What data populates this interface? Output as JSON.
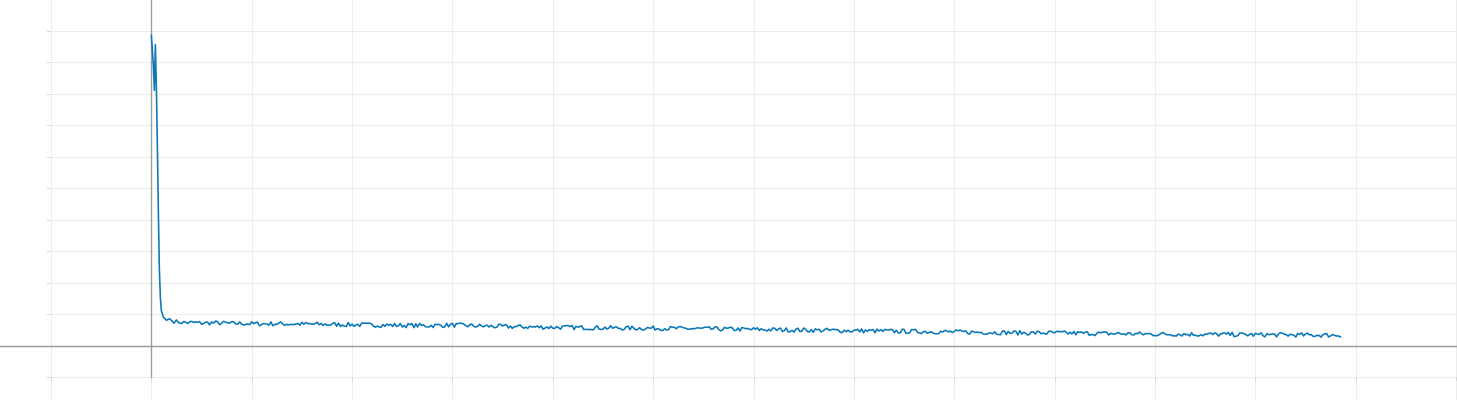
{
  "chart_data": {
    "type": "line",
    "title": "",
    "xlabel": "",
    "ylabel": "",
    "xlim": [
      -1,
      13
    ],
    "ylim": [
      -1,
      11
    ],
    "x_grid_ticks": [
      -1,
      0,
      1,
      2,
      3,
      4,
      5,
      6,
      7,
      8,
      9,
      10,
      11,
      12,
      13
    ],
    "y_grid_ticks": [
      -1,
      0,
      1,
      2,
      3,
      4,
      5,
      6,
      7,
      8,
      9,
      10,
      11
    ],
    "tick_labels_visible": false,
    "grid": true,
    "legend": "none",
    "x_zero_axis": 0,
    "y_zero_axis": 0,
    "series": [
      {
        "color": "#0a77b8",
        "points": [
          [
            0.0,
            9.85
          ],
          [
            0.01,
            9.4
          ],
          [
            0.02,
            8.9
          ],
          [
            0.03,
            8.1
          ],
          [
            0.04,
            9.55
          ],
          [
            0.05,
            8.2
          ],
          [
            0.06,
            6.3
          ],
          [
            0.07,
            4.2
          ],
          [
            0.08,
            2.4
          ],
          [
            0.09,
            1.5
          ],
          [
            0.1,
            1.1
          ],
          [
            0.12,
            0.9
          ],
          [
            0.15,
            0.8
          ],
          [
            0.18,
            0.85
          ],
          [
            0.2,
            0.8
          ],
          [
            0.25,
            0.75
          ],
          [
            0.3,
            0.74
          ],
          [
            0.35,
            0.72
          ],
          [
            0.4,
            0.73
          ],
          [
            0.5,
            0.71
          ],
          [
            0.6,
            0.72
          ],
          [
            0.7,
            0.71
          ],
          [
            0.8,
            0.7
          ],
          [
            0.9,
            0.7
          ],
          [
            1.0,
            0.69
          ],
          [
            1.25,
            0.69
          ],
          [
            1.5,
            0.68
          ],
          [
            1.75,
            0.67
          ],
          [
            2.0,
            0.66
          ],
          [
            2.25,
            0.65
          ],
          [
            2.5,
            0.64
          ],
          [
            2.75,
            0.63
          ],
          [
            3.0,
            0.65
          ],
          [
            3.25,
            0.62
          ],
          [
            3.5,
            0.6
          ],
          [
            3.75,
            0.59
          ],
          [
            4.0,
            0.58
          ],
          [
            4.25,
            0.57
          ],
          [
            4.5,
            0.56
          ],
          [
            4.75,
            0.55
          ],
          [
            5.0,
            0.55
          ],
          [
            5.25,
            0.54
          ],
          [
            5.5,
            0.53
          ],
          [
            5.75,
            0.52
          ],
          [
            6.0,
            0.51
          ],
          [
            6.25,
            0.5
          ],
          [
            6.5,
            0.49
          ],
          [
            6.75,
            0.48
          ],
          [
            7.0,
            0.47
          ],
          [
            7.25,
            0.46
          ],
          [
            7.5,
            0.45
          ],
          [
            7.75,
            0.44
          ],
          [
            8.0,
            0.43
          ],
          [
            8.25,
            0.42
          ],
          [
            8.5,
            0.41
          ],
          [
            8.75,
            0.4
          ],
          [
            9.0,
            0.4
          ],
          [
            9.25,
            0.39
          ],
          [
            9.5,
            0.38
          ],
          [
            9.75,
            0.37
          ],
          [
            10.0,
            0.36
          ],
          [
            10.25,
            0.36
          ],
          [
            10.5,
            0.35
          ],
          [
            10.75,
            0.35
          ],
          [
            11.0,
            0.34
          ],
          [
            11.25,
            0.34
          ],
          [
            11.5,
            0.33
          ],
          [
            11.75,
            0.33
          ],
          [
            11.85,
            0.33
          ]
        ]
      }
    ]
  }
}
